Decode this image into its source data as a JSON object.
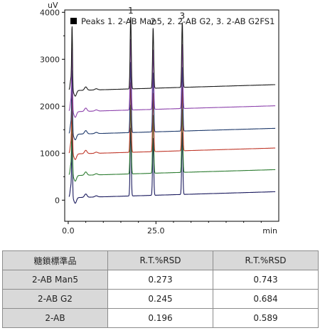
{
  "chart_data": {
    "type": "line",
    "ylabel": "uV",
    "xlabel": "min",
    "xlim": [
      -1,
      60
    ],
    "ylim": [
      -450,
      4050
    ],
    "x_ticks": [
      {
        "value": 0,
        "label": "0.0"
      },
      {
        "value": 25,
        "label": "25.0"
      }
    ],
    "y_ticks": [
      0,
      1000,
      2000,
      3000,
      4000
    ],
    "legend": {
      "text": "Peaks  1. 2-AB Man5, 2. 2-AB G2, 3. 2-AB G2FS1",
      "position": "top-left",
      "swatch_color": "#000000"
    },
    "peaks": [
      {
        "label": "1",
        "rt": 17.8
      },
      {
        "label": "2",
        "rt": 24.2
      },
      {
        "label": "3",
        "rt": 32.5
      }
    ],
    "series": [
      {
        "color": "#1a1a5e",
        "baseline": 50,
        "peak_heights": [
          1450,
          1220,
          1320
        ],
        "solvent_front": 1250
      },
      {
        "color": "#2e7d32",
        "baseline": 520,
        "peak_heights": [
          1470,
          1240,
          1340
        ],
        "solvent_front": 1250
      },
      {
        "color": "#c0392b",
        "baseline": 980,
        "peak_heights": [
          1490,
          1250,
          1350
        ],
        "solvent_front": 1250
      },
      {
        "color": "#1f3a6b",
        "baseline": 1400,
        "peak_heights": [
          1500,
          1260,
          1360
        ],
        "solvent_front": 1250
      },
      {
        "color": "#8e44ad",
        "baseline": 1880,
        "peak_heights": [
          1510,
          1270,
          1370
        ],
        "solvent_front": 1250
      },
      {
        "color": "#1a1a1a",
        "baseline": 2330,
        "peak_heights": [
          1530,
          1280,
          1380
        ],
        "solvent_front": 1250
      }
    ]
  },
  "table": {
    "headers": [
      "糖鎖標準品",
      "R.T.%RSD",
      "R.T.%RSD"
    ],
    "rows": [
      {
        "name": "2-AB Man5",
        "values": [
          "0.273",
          "0.743"
        ]
      },
      {
        "name": "2-AB G2",
        "values": [
          "0.245",
          "0.684"
        ]
      },
      {
        "name": "2-AB",
        "values": [
          "0.196",
          "0.589"
        ]
      }
    ]
  }
}
